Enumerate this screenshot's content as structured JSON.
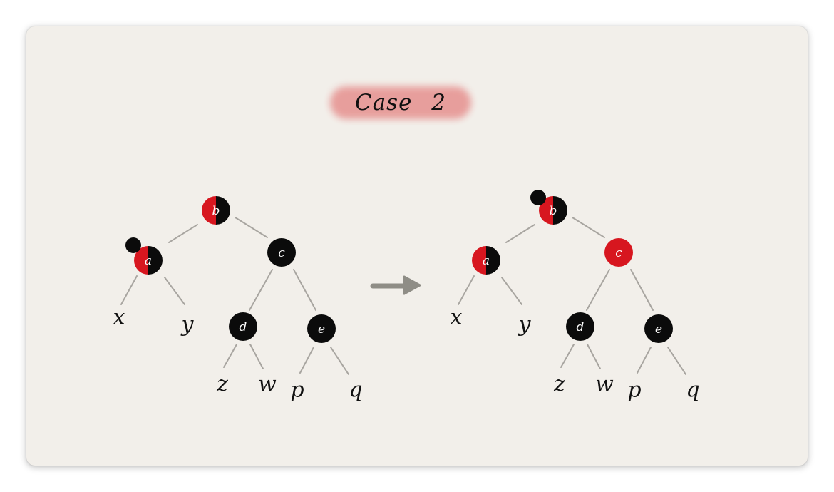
{
  "title": "Case 2",
  "colors": {
    "red": "#d7161f",
    "black": "#0b0b0b",
    "edge": "#a8a5a0",
    "arrow": "#8f8d86",
    "title_highlight": "#e79a98"
  },
  "diagram": {
    "before": {
      "nodes": [
        {
          "id": "b",
          "label": "b",
          "color": "red-black"
        },
        {
          "id": "a",
          "label": "a",
          "color": "red-black",
          "extra_black": true
        },
        {
          "id": "c",
          "label": "c",
          "color": "black"
        },
        {
          "id": "d",
          "label": "d",
          "color": "black"
        },
        {
          "id": "e",
          "label": "e",
          "color": "black"
        }
      ],
      "leaves": [
        "x",
        "y",
        "z",
        "w",
        "p",
        "q"
      ]
    },
    "after": {
      "nodes": [
        {
          "id": "b",
          "label": "b",
          "color": "red-black",
          "extra_black": true
        },
        {
          "id": "a",
          "label": "a",
          "color": "red-black"
        },
        {
          "id": "c",
          "label": "c",
          "color": "red"
        },
        {
          "id": "d",
          "label": "d",
          "color": "black"
        },
        {
          "id": "e",
          "label": "e",
          "color": "black"
        }
      ],
      "leaves": [
        "x",
        "y",
        "z",
        "w",
        "p",
        "q"
      ]
    }
  }
}
